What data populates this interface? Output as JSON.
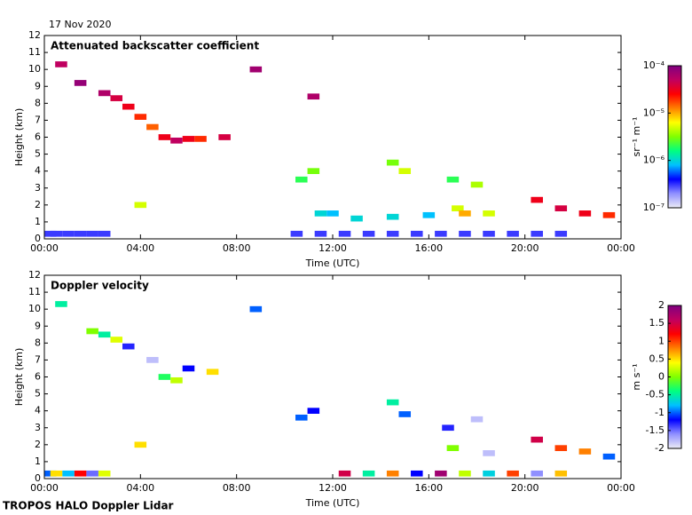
{
  "date": "17 Nov 2020",
  "footer": "TROPOS HALO Doppler Lidar",
  "chart_data": [
    {
      "type": "heatmap",
      "title": "Attenuated backscatter coefficient",
      "x_label": "Time (UTC)",
      "y_label": "Height (km)",
      "xlim": [
        0,
        24
      ],
      "xticks": [
        {
          "value": 0,
          "label": "00:00"
        },
        {
          "value": 4,
          "label": "04:00"
        },
        {
          "value": 8,
          "label": "08:00"
        },
        {
          "value": 12,
          "label": "12:00"
        },
        {
          "value": 16,
          "label": "16:00"
        },
        {
          "value": 20,
          "label": "20:00"
        },
        {
          "value": 24,
          "label": "00:00"
        }
      ],
      "ylim": [
        0,
        12
      ],
      "yticks": [
        0,
        1,
        2,
        3,
        4,
        5,
        6,
        7,
        8,
        9,
        10,
        11,
        12
      ],
      "colorbar": {
        "label": "sr⁻¹ m⁻¹",
        "log": true,
        "lim": [
          1e-07,
          0.0001
        ],
        "ticks": [
          {
            "value": 1e-07,
            "label": "10⁻⁷"
          },
          {
            "value": 1e-06,
            "label": "10⁻⁶"
          },
          {
            "value": 1e-05,
            "label": "10⁻⁵"
          },
          {
            "value": 0.0001,
            "label": "10⁻⁴"
          }
        ],
        "colors": [
          "#ececf6",
          "#9090ff",
          "#0000ff",
          "#00c0ff",
          "#00ff80",
          "#80ff00",
          "#ffff00",
          "#ff8000",
          "#ff0000",
          "#c00060",
          "#800080"
        ]
      },
      "cells": {
        "time": [
          0,
          0.5,
          1,
          1.5,
          2,
          2.5,
          0.7,
          1.5,
          2.5,
          3,
          3.5,
          4,
          4.5,
          5,
          5.5,
          6,
          6.5,
          7.5,
          4,
          8.8,
          11.2,
          10.7,
          11.2,
          11.5,
          12,
          13,
          14.5,
          15,
          14.5,
          16,
          17,
          17.2,
          17.5,
          18,
          18.5,
          20.5,
          21.5,
          22.5,
          23.5,
          10.5,
          11.5,
          12.5,
          13.5,
          14.5,
          15.5,
          16.5,
          17.5,
          18.5,
          19.5,
          20.5,
          21.5
        ],
        "height": [
          0.3,
          0.3,
          0.3,
          0.3,
          0.3,
          0.3,
          10.3,
          9.2,
          8.6,
          8.3,
          7.8,
          7.2,
          6.6,
          6,
          5.8,
          5.9,
          5.9,
          6,
          2,
          10,
          8.4,
          3.5,
          4,
          1.5,
          1.5,
          1.2,
          4.5,
          4,
          1.3,
          1.4,
          3.5,
          1.8,
          1.5,
          3.2,
          1.5,
          2.3,
          1.8,
          1.5,
          1.4,
          0.3,
          0.3,
          0.3,
          0.3,
          0.3,
          0.3,
          0.3,
          0.3,
          0.3,
          0.3,
          0.3,
          0.3
        ],
        "values": [
          3e-07,
          3e-07,
          3e-07,
          3e-07,
          3e-07,
          3e-07,
          5e-05,
          8e-05,
          6e-05,
          4e-05,
          3e-05,
          2e-05,
          1.5e-05,
          3e-05,
          5e-05,
          3e-05,
          2e-05,
          4e-05,
          5e-06,
          7e-05,
          6e-05,
          2e-06,
          3e-06,
          1e-06,
          8e-07,
          1e-06,
          3e-06,
          5e-06,
          1e-06,
          8e-07,
          2e-06,
          5e-06,
          1e-05,
          4e-06,
          5e-06,
          3e-05,
          4e-05,
          3e-05,
          2e-05,
          3e-07,
          3e-07,
          3e-07,
          3e-07,
          3e-07,
          3e-07,
          3e-07,
          3e-07,
          3e-07,
          3e-07,
          3e-07,
          3e-07
        ]
      }
    },
    {
      "type": "heatmap",
      "title": "Doppler velocity",
      "x_label": "Time (UTC)",
      "y_label": "Height (km)",
      "xlim": [
        0,
        24
      ],
      "xticks": [
        {
          "value": 0,
          "label": "00:00"
        },
        {
          "value": 4,
          "label": "04:00"
        },
        {
          "value": 8,
          "label": "08:00"
        },
        {
          "value": 12,
          "label": "12:00"
        },
        {
          "value": 16,
          "label": "16:00"
        },
        {
          "value": 20,
          "label": "20:00"
        },
        {
          "value": 24,
          "label": "00:00"
        }
      ],
      "ylim": [
        0,
        12
      ],
      "yticks": [
        0,
        1,
        2,
        3,
        4,
        5,
        6,
        7,
        8,
        9,
        10,
        11,
        12
      ],
      "colorbar": {
        "label": "m s⁻¹",
        "log": false,
        "lim": [
          -2,
          2
        ],
        "ticks": [
          -2,
          -1.5,
          -1,
          -0.5,
          0,
          0.5,
          1,
          1.5,
          2
        ],
        "colors": [
          "#ececf6",
          "#9090ff",
          "#0000ff",
          "#00c0ff",
          "#00ff80",
          "#80ff00",
          "#ffff00",
          "#ff8000",
          "#ff0000",
          "#c00060",
          "#800080"
        ]
      },
      "cells": {
        "time": [
          0.7,
          2,
          2.5,
          3,
          3.5,
          4.5,
          5,
          5.5,
          6,
          7,
          4,
          8.8,
          10.7,
          11.2,
          14.5,
          15,
          16.8,
          17,
          18,
          18.5,
          20.5,
          21.5,
          22.5,
          23.5,
          0,
          0.5,
          1,
          1.5,
          2,
          2.5,
          12.5,
          13.5,
          14.5,
          15.5,
          16.5,
          17.5,
          18.5,
          19.5,
          20.5,
          21.5
        ],
        "height": [
          10.3,
          8.7,
          8.5,
          8.2,
          7.8,
          7,
          6,
          5.8,
          6.5,
          6.3,
          2,
          10,
          3.6,
          4,
          4.5,
          3.8,
          3,
          1.8,
          3.5,
          1.5,
          2.3,
          1.8,
          1.6,
          1.3,
          0.3,
          0.3,
          0.3,
          0.3,
          0.3,
          0.3,
          0.3,
          0.3,
          0.3,
          0.3,
          0.3,
          0.3,
          0.3,
          0.3,
          0.3,
          0.3
        ],
        "values": [
          -0.5,
          0,
          -0.5,
          0.3,
          -1.3,
          -1.8,
          -0.3,
          0.2,
          -1.2,
          0.5,
          0.5,
          -1,
          -1,
          -1.2,
          -0.5,
          -1,
          -1.3,
          0,
          -1.8,
          -1.8,
          1.5,
          1,
          0.8,
          -1,
          -1,
          0.5,
          -0.8,
          1.2,
          -1.5,
          0.3,
          1.5,
          -0.5,
          0.8,
          -1.2,
          1.8,
          0.2,
          -0.7,
          1,
          -1.6,
          0.6
        ]
      }
    }
  ]
}
